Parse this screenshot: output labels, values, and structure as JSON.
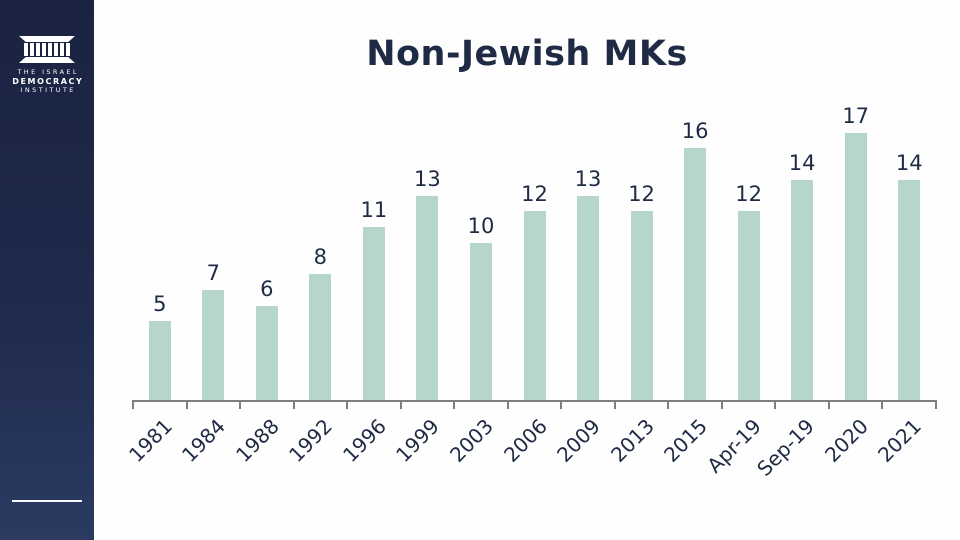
{
  "sidebar": {
    "logo_lines": [
      "THE ISRAEL",
      "DEMOCRACY",
      "INSTITUTE"
    ],
    "background_top": "#1b2342",
    "background_bottom": "#2a3a61"
  },
  "chart_data": {
    "type": "bar",
    "title": "Non-Jewish MKs",
    "categories": [
      "1981",
      "1984",
      "1988",
      "1992",
      "1996",
      "1999",
      "2003",
      "2006",
      "2009",
      "2013",
      "2015",
      "Apr-19",
      "Sep-19",
      "2020",
      "2021"
    ],
    "values": [
      5,
      7,
      6,
      8,
      11,
      13,
      10,
      12,
      13,
      12,
      16,
      12,
      14,
      17,
      14
    ],
    "xlabel": "",
    "ylabel": "",
    "ylim": [
      0,
      17.8
    ],
    "grid": false,
    "legend": false,
    "data_labels": true,
    "x_label_rotation": -45,
    "bar_color": "#b6d5cc",
    "label_color": "#1f2a44",
    "axis_color": "#7f7f7f",
    "title_color": "#1f2a44"
  }
}
